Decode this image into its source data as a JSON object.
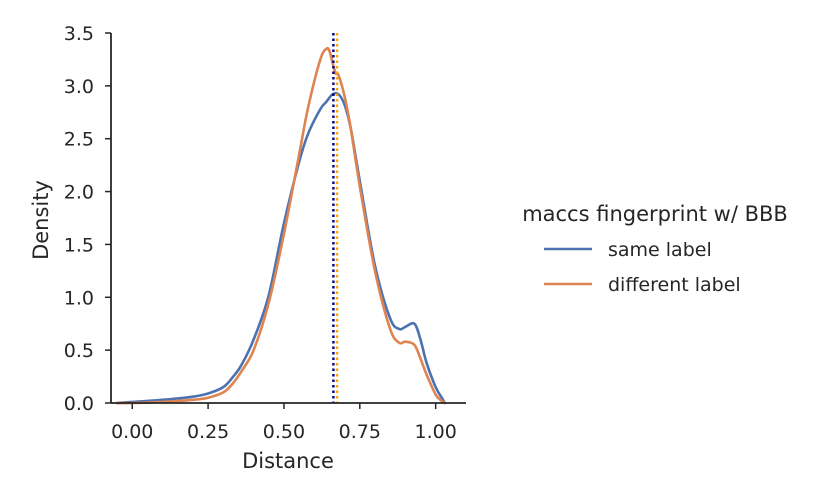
{
  "chart_data": {
    "type": "line",
    "title": "",
    "xlabel": "Distance",
    "ylabel": "Density",
    "xlim": [
      -0.07,
      1.1
    ],
    "ylim": [
      0,
      3.5
    ],
    "xticks": [
      0.0,
      0.25,
      0.5,
      0.75,
      1.0
    ],
    "xtick_labels": [
      "0.00",
      "0.25",
      "0.50",
      "0.75",
      "1.00"
    ],
    "yticks": [
      0.0,
      0.5,
      1.0,
      1.5,
      2.0,
      2.5,
      3.0,
      3.5
    ],
    "ytick_labels": [
      "0.0",
      "0.5",
      "1.0",
      "1.5",
      "2.0",
      "2.5",
      "3.0",
      "3.5"
    ],
    "grid": false,
    "legend": {
      "title": "maccs fingerprint w/ BBB",
      "placement": "right"
    },
    "series": [
      {
        "name": "same label",
        "color": "#4c72b0",
        "x": [
          -0.05,
          0.0,
          0.1,
          0.2,
          0.25,
          0.3,
          0.33,
          0.36,
          0.4,
          0.45,
          0.5,
          0.55,
          0.58,
          0.62,
          0.64,
          0.66,
          0.68,
          0.7,
          0.72,
          0.75,
          0.8,
          0.85,
          0.88,
          0.9,
          0.93,
          0.95,
          0.97,
          1.0,
          1.02,
          1.03
        ],
        "y": [
          0.0,
          0.01,
          0.03,
          0.06,
          0.09,
          0.15,
          0.24,
          0.36,
          0.6,
          1.02,
          1.7,
          2.28,
          2.55,
          2.78,
          2.85,
          2.92,
          2.92,
          2.82,
          2.6,
          2.1,
          1.3,
          0.8,
          0.7,
          0.72,
          0.75,
          0.6,
          0.38,
          0.15,
          0.05,
          0.0
        ]
      },
      {
        "name": "different label",
        "color": "#dd8452",
        "x": [
          -0.05,
          0.0,
          0.1,
          0.2,
          0.25,
          0.3,
          0.33,
          0.36,
          0.4,
          0.45,
          0.5,
          0.55,
          0.58,
          0.62,
          0.64,
          0.65,
          0.66,
          0.67,
          0.68,
          0.7,
          0.72,
          0.75,
          0.8,
          0.85,
          0.88,
          0.9,
          0.93,
          0.95,
          0.97,
          1.0,
          1.02,
          1.03
        ],
        "y": [
          0.0,
          0.0,
          0.01,
          0.03,
          0.05,
          0.1,
          0.18,
          0.3,
          0.5,
          0.95,
          1.6,
          2.35,
          2.8,
          3.25,
          3.35,
          3.33,
          3.22,
          3.12,
          3.1,
          2.9,
          2.6,
          2.05,
          1.25,
          0.7,
          0.57,
          0.58,
          0.55,
          0.42,
          0.27,
          0.08,
          0.02,
          0.0
        ]
      }
    ],
    "reference_lines": [
      {
        "x": 0.663,
        "color": "#00008b",
        "style": "dotted"
      },
      {
        "x": 0.675,
        "color": "#ffa500",
        "style": "dotted"
      }
    ]
  }
}
